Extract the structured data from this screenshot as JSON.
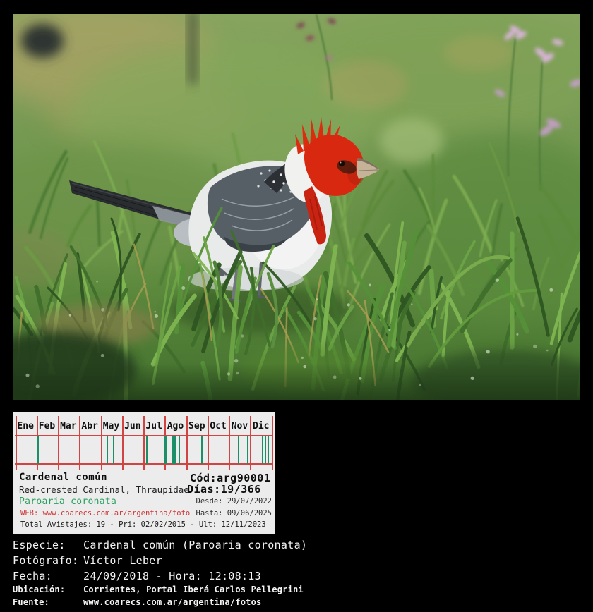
{
  "photo": {
    "description": "Red-crested Cardinal (Paroaria coronata) standing in wet green grass with pink flowers in background"
  },
  "calendar": {
    "months": [
      "Ene",
      "Feb",
      "Mar",
      "Abr",
      "May",
      "Jun",
      "Jul",
      "Ago",
      "Sep",
      "Oct",
      "Nov",
      "Dic"
    ],
    "grid_color": "#d24444",
    "tick_color": "#1d8f68",
    "ticks": [
      {
        "pos": 0.088,
        "w": 2
      },
      {
        "pos": 0.358,
        "w": 2
      },
      {
        "pos": 0.382,
        "w": 2
      },
      {
        "pos": 0.51,
        "w": 3
      },
      {
        "pos": 0.584,
        "w": 3
      },
      {
        "pos": 0.612,
        "w": 2
      },
      {
        "pos": 0.621,
        "w": 2
      },
      {
        "pos": 0.639,
        "w": 2
      },
      {
        "pos": 0.727,
        "w": 3
      },
      {
        "pos": 0.869,
        "w": 2
      },
      {
        "pos": 0.904,
        "w": 2
      },
      {
        "pos": 0.964,
        "w": 2
      },
      {
        "pos": 0.975,
        "w": 2
      },
      {
        "pos": 0.986,
        "w": 2
      }
    ]
  },
  "species_card": {
    "common_name": "Cardenal común",
    "code": "Cód:arg90001",
    "english_line": "Red-crested Cardinal, Thraupidae",
    "days": "Días:19/366",
    "scientific_name": "Paroaria coronata",
    "since_line": "Desde: 29/07/2022",
    "web_line": "WEB: www.coarecs.com.ar/argentina/foto",
    "until_line": "Hasta: 09/06/2025",
    "totals_line": "Total Avistajes: 19 - Pri: 02/02/2015 - Ult: 12/11/2023"
  },
  "details": {
    "rows": [
      {
        "label": "Especie:",
        "value": "Cardenal común (Paroaria coronata)"
      },
      {
        "label": "Fotógrafo:",
        "value": "Víctor Leber"
      },
      {
        "label": "Fecha:",
        "value": "24/09/2018 - Hora: 12:08:13"
      },
      {
        "label": "Ubicación:",
        "value": "Corrientes, Portal Iberá Carlos Pellegrini"
      },
      {
        "label": "Fuente:",
        "value": "www.coarecs.com.ar/argentina/fotos"
      }
    ]
  }
}
